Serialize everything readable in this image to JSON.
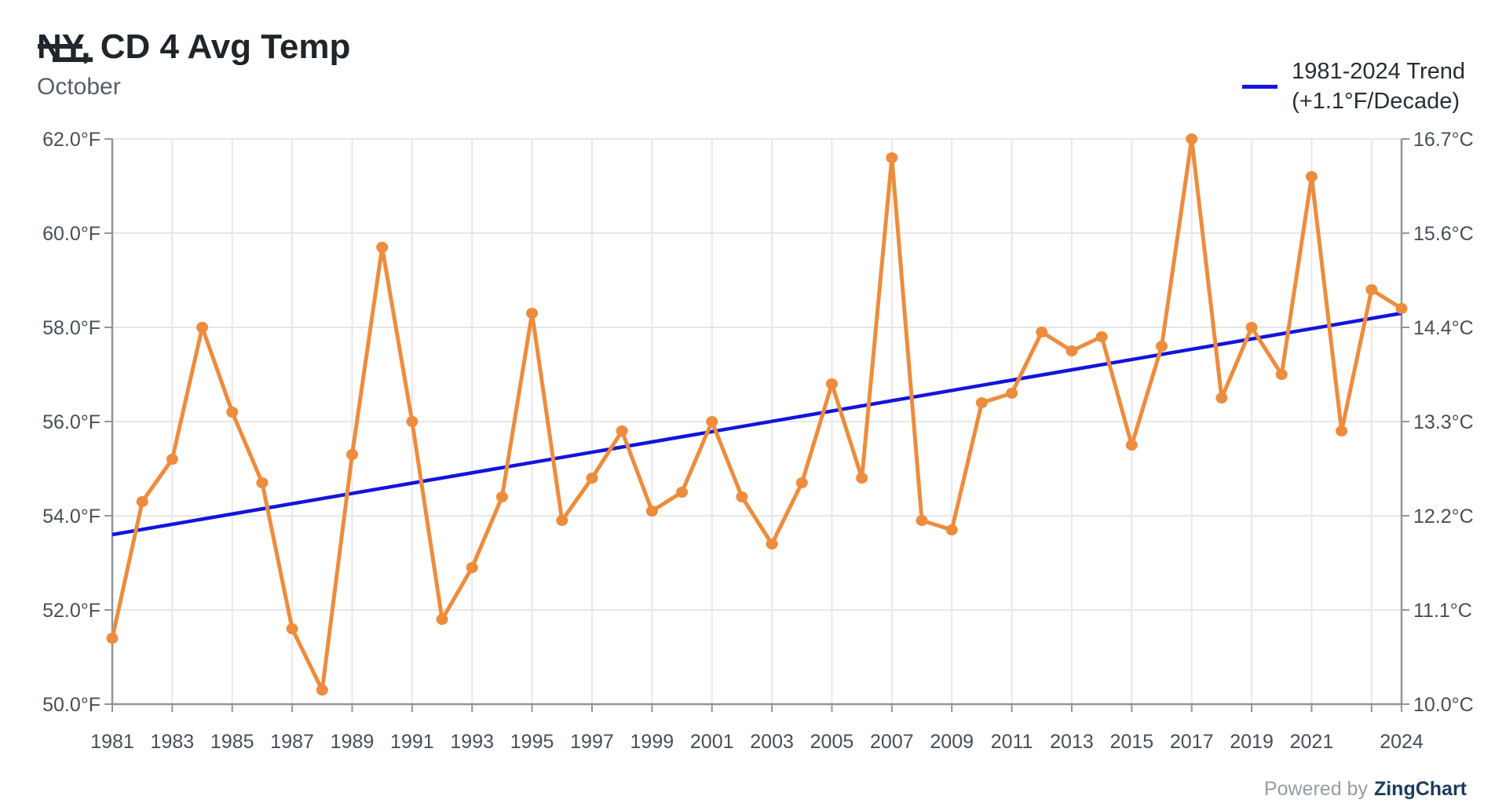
{
  "header": {
    "title_prefix": "NY,",
    "title_rest": " CD 4 Avg Temp",
    "subtitle": "October"
  },
  "legend": {
    "line1": "1981-2024 Trend",
    "line2": "(+1.1°F/Decade)",
    "swatch_color": "#1414dc"
  },
  "footer": {
    "powered_by": "Powered by",
    "brand": "ZingChart"
  },
  "colors": {
    "series_orange": "#ed8c3d",
    "trend_blue": "#1414dc",
    "gridline": "#e7e7e7",
    "axis_line": "#8f969c",
    "axis_label": "#474e56"
  },
  "chart_data": {
    "type": "line",
    "title": "NY, CD 4 Avg Temp",
    "subtitle": "October",
    "grid": true,
    "ylim": [
      50,
      62
    ],
    "x": [
      1981,
      1982,
      1983,
      1984,
      1985,
      1986,
      1987,
      1988,
      1989,
      1990,
      1991,
      1992,
      1993,
      1994,
      1995,
      1996,
      1997,
      1998,
      1999,
      2000,
      2001,
      2002,
      2003,
      2004,
      2005,
      2006,
      2007,
      2008,
      2009,
      2010,
      2011,
      2012,
      2013,
      2014,
      2015,
      2016,
      2017,
      2018,
      2019,
      2020,
      2021,
      2022,
      2023,
      2024
    ],
    "series": [
      {
        "name": "Avg Temp (°F)",
        "color": "#ed8c3d",
        "marker": "circle",
        "values": [
          51.4,
          54.3,
          55.2,
          58.0,
          56.2,
          54.7,
          51.6,
          50.3,
          55.3,
          59.7,
          56.0,
          51.8,
          52.9,
          54.4,
          58.3,
          53.9,
          54.8,
          55.8,
          54.1,
          54.5,
          56.0,
          54.4,
          53.4,
          54.7,
          56.8,
          54.8,
          61.6,
          53.9,
          53.7,
          56.4,
          56.6,
          57.9,
          57.5,
          57.8,
          55.5,
          57.6,
          62.0,
          56.5,
          58.0,
          57.0,
          61.2,
          55.8,
          58.8,
          58.4
        ]
      },
      {
        "name": "1981-2024 Trend (+1.1°F/Decade)",
        "color": "#1414dc",
        "type": "trend",
        "trend": {
          "start_year": 1981,
          "start_value": 53.6,
          "end_year": 2024,
          "end_value": 58.3,
          "slope_per_decade_f": 1.1
        }
      }
    ],
    "y_axis_left": {
      "unit": "°F",
      "tick_values": [
        62,
        60,
        58,
        56,
        54,
        52,
        50
      ],
      "tick_labels": [
        "62.0°F",
        "60.0°F",
        "58.0°F",
        "56.0°F",
        "54.0°F",
        "52.0°F",
        "50.0°F"
      ]
    },
    "y_axis_right": {
      "unit": "°C",
      "tick_labels": [
        "16.7°C",
        "15.6°C",
        "14.4°C",
        "13.3°C",
        "12.2°C",
        "11.1°C",
        "10.0°C"
      ]
    },
    "x_axis": {
      "tick_years": [
        1981,
        1983,
        1985,
        1987,
        1989,
        1991,
        1993,
        1995,
        1997,
        1999,
        2001,
        2003,
        2005,
        2007,
        2009,
        2011,
        2013,
        2015,
        2017,
        2019,
        2021,
        2023,
        2024
      ],
      "label_years": [
        1981,
        1983,
        1985,
        1987,
        1989,
        1991,
        1993,
        1995,
        1997,
        1999,
        2001,
        2003,
        2005,
        2007,
        2009,
        2011,
        2013,
        2015,
        2017,
        2019,
        2021,
        2024
      ],
      "gridline_years": [
        1983,
        1985,
        1987,
        1989,
        1991,
        1993,
        1995,
        1997,
        1999,
        2001,
        2003,
        2005,
        2007,
        2009,
        2011,
        2013,
        2015,
        2017,
        2019,
        2021,
        2023
      ]
    },
    "legend_position": "top-right"
  }
}
